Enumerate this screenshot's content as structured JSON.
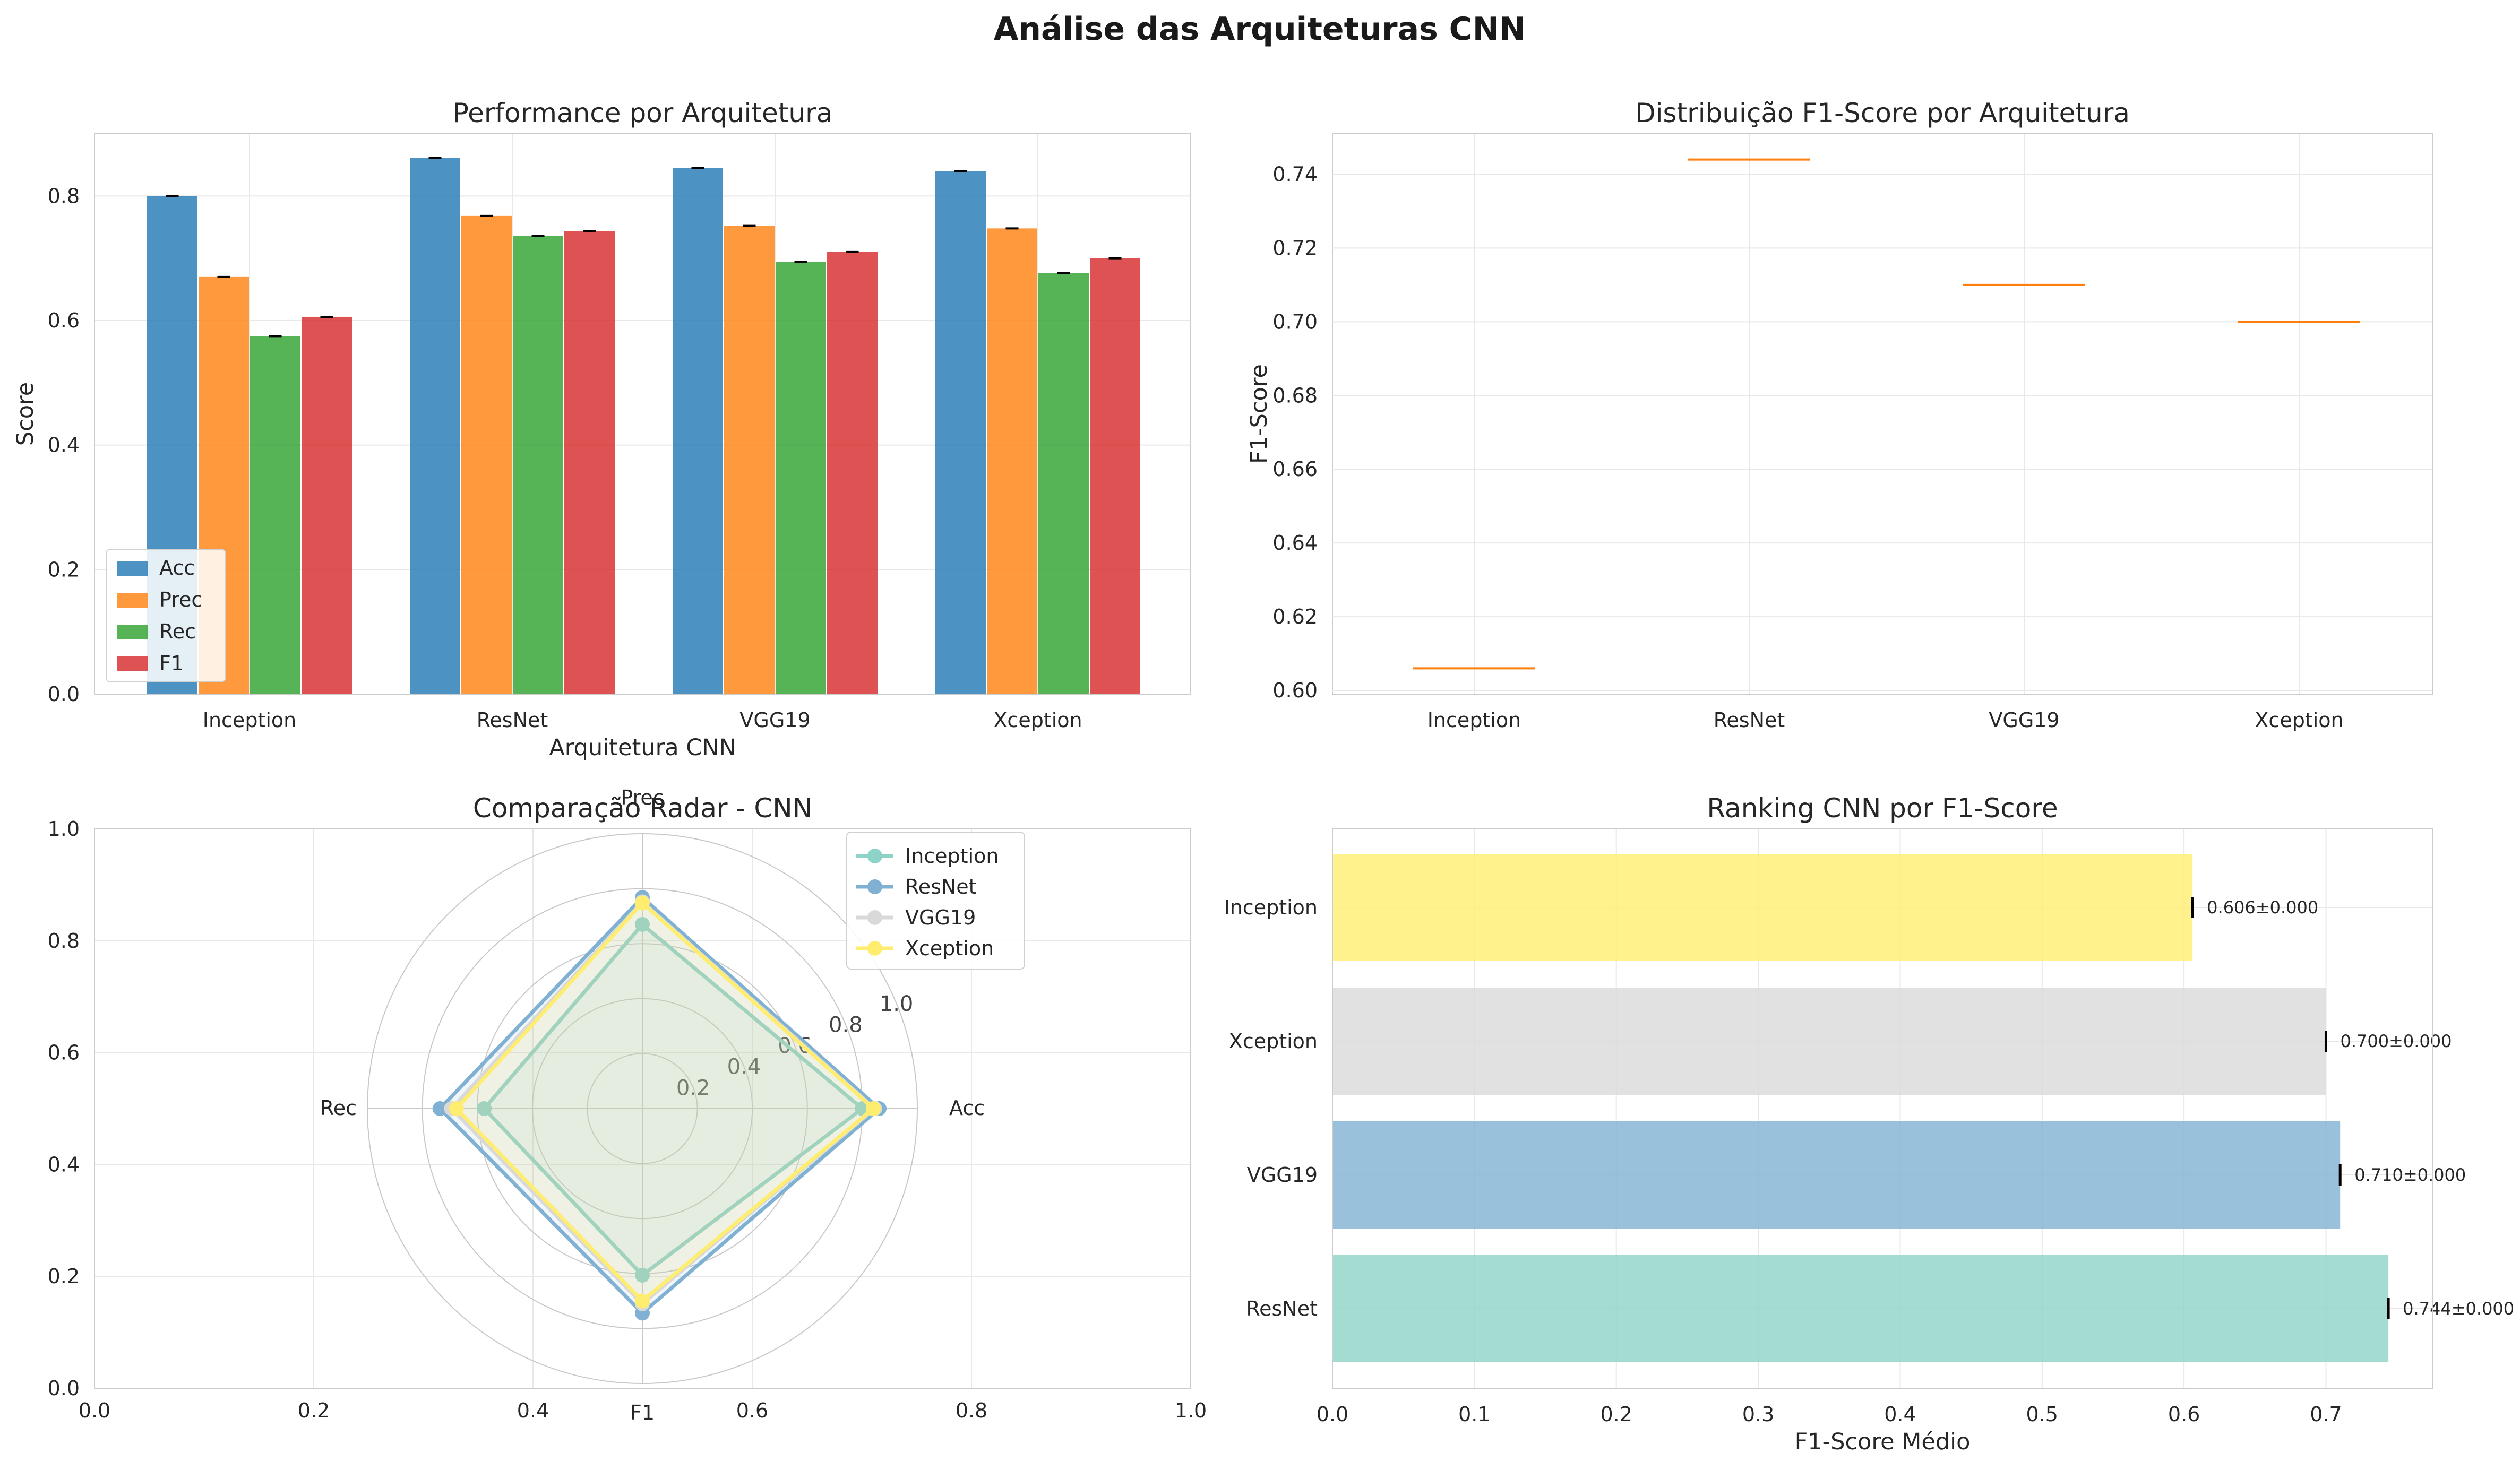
{
  "suptitle": "Análise das Arquiteturas CNN",
  "colors": {
    "acc": "#1f77b4",
    "prec": "#ff7f0e",
    "rec": "#2ca02c",
    "f1": "#d62728",
    "grid": "#e8e8e8",
    "spine": "#cccccc",
    "radar_inception": "#8dd3c7",
    "radar_resnet": "#80b1d3",
    "radar_vgg19": "#d9d9d9",
    "radar_xception": "#ffed6f",
    "rank_inception": "#ffed6f",
    "rank_xception": "#d9d9d9",
    "rank_vgg19": "#80b1d3",
    "rank_resnet": "#8dd3c7",
    "median": "#ff7f0e"
  },
  "chart_data": [
    {
      "type": "bar",
      "title": "Performance por Arquitetura",
      "xlabel": "Arquitetura CNN",
      "ylabel": "Score",
      "ylim": [
        0,
        0.9
      ],
      "yticks": [
        "0.0",
        "0.2",
        "0.4",
        "0.6",
        "0.8"
      ],
      "categories": [
        "Inception",
        "ResNet",
        "VGG19",
        "Xception"
      ],
      "series": [
        {
          "name": "Acc",
          "values": [
            0.8,
            0.861,
            0.845,
            0.84
          ]
        },
        {
          "name": "Prec",
          "values": [
            0.67,
            0.768,
            0.752,
            0.748
          ]
        },
        {
          "name": "Rec",
          "values": [
            0.575,
            0.736,
            0.694,
            0.676
          ]
        },
        {
          "name": "F1",
          "values": [
            0.606,
            0.744,
            0.71,
            0.7
          ]
        }
      ],
      "legend": "lower-left",
      "grid": true
    },
    {
      "type": "box",
      "title": "Distribuição F1-Score por Arquitetura",
      "ylabel": "F1-Score",
      "ylim": [
        0.599,
        0.751
      ],
      "yticks": [
        "0.60",
        "0.62",
        "0.64",
        "0.66",
        "0.68",
        "0.70",
        "0.72",
        "0.74"
      ],
      "categories": [
        "Inception",
        "ResNet",
        "VGG19",
        "Xception"
      ],
      "medians": [
        0.606,
        0.744,
        0.71,
        0.7
      ],
      "grid": true
    },
    {
      "type": "radar",
      "title": "Comparação Radar - CNN",
      "axes": [
        "Acc",
        "Prec",
        "Rec",
        "F1"
      ],
      "rticks": [
        "0.2",
        "0.4",
        "0.6",
        "0.8",
        "1.0"
      ],
      "outer_ticks": [
        "0.0",
        "0.2",
        "0.4",
        "0.6",
        "0.8",
        "1.0"
      ],
      "series": [
        {
          "name": "Inception",
          "values": [
            0.8,
            0.67,
            0.575,
            0.606
          ]
        },
        {
          "name": "ResNet",
          "values": [
            0.861,
            0.768,
            0.736,
            0.744
          ]
        },
        {
          "name": "VGG19",
          "values": [
            0.845,
            0.752,
            0.694,
            0.71
          ]
        },
        {
          "name": "Xception",
          "values": [
            0.84,
            0.748,
            0.676,
            0.7
          ]
        }
      ],
      "legend": "upper-right"
    },
    {
      "type": "hbar",
      "title": "Ranking CNN por F1-Score",
      "xlabel": "F1-Score Médio",
      "xlim": [
        0,
        0.775
      ],
      "xticks": [
        "0.0",
        "0.1",
        "0.2",
        "0.3",
        "0.4",
        "0.5",
        "0.6",
        "0.7"
      ],
      "categories": [
        "Inception",
        "Xception",
        "VGG19",
        "ResNet"
      ],
      "values": [
        0.606,
        0.7,
        0.71,
        0.744
      ],
      "labels": [
        "0.606±0.000",
        "0.700±0.000",
        "0.710±0.000",
        "0.744±0.000"
      ],
      "grid": true
    }
  ]
}
